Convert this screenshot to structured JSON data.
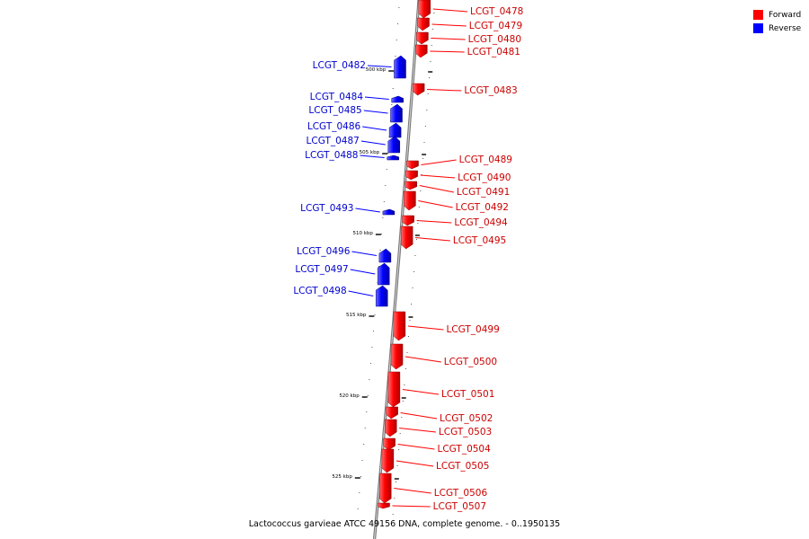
{
  "caption": "Lactococcus garvieae ATCC 49156 DNA, complete genome. - 0..1950135",
  "legend": [
    {
      "label": "Forward",
      "color": "#ff0000"
    },
    {
      "label": "Reverse",
      "color": "#0000ff"
    }
  ],
  "colors": {
    "forward": "#ff0000",
    "reverse": "#0000ff",
    "forward_label": "#cc0000",
    "reverse_label": "#0000cc"
  },
  "ticks": [
    {
      "kbp": 500,
      "label": "500 kbp"
    },
    {
      "kbp": 505,
      "label": "505 kbp"
    },
    {
      "kbp": 510,
      "label": "510 kbp"
    },
    {
      "kbp": 515,
      "label": "515 kbp"
    },
    {
      "kbp": 520,
      "label": "520 kbp"
    },
    {
      "kbp": 525,
      "label": "525 kbp"
    }
  ],
  "genes": [
    {
      "name": "LCGT_0478",
      "strand": "forward"
    },
    {
      "name": "LCGT_0479",
      "strand": "forward"
    },
    {
      "name": "LCGT_0480",
      "strand": "forward"
    },
    {
      "name": "LCGT_0481",
      "strand": "forward"
    },
    {
      "name": "LCGT_0482",
      "strand": "reverse"
    },
    {
      "name": "LCGT_0483",
      "strand": "forward"
    },
    {
      "name": "LCGT_0484",
      "strand": "reverse"
    },
    {
      "name": "LCGT_0485",
      "strand": "reverse"
    },
    {
      "name": "LCGT_0486",
      "strand": "reverse"
    },
    {
      "name": "LCGT_0487",
      "strand": "reverse"
    },
    {
      "name": "LCGT_0488",
      "strand": "reverse"
    },
    {
      "name": "LCGT_0489",
      "strand": "forward"
    },
    {
      "name": "LCGT_0490",
      "strand": "forward"
    },
    {
      "name": "LCGT_0491",
      "strand": "forward"
    },
    {
      "name": "LCGT_0492",
      "strand": "forward"
    },
    {
      "name": "LCGT_0493",
      "strand": "reverse"
    },
    {
      "name": "LCGT_0494",
      "strand": "forward"
    },
    {
      "name": "LCGT_0495",
      "strand": "forward"
    },
    {
      "name": "LCGT_0496",
      "strand": "reverse"
    },
    {
      "name": "LCGT_0497",
      "strand": "reverse"
    },
    {
      "name": "LCGT_0498",
      "strand": "reverse"
    },
    {
      "name": "LCGT_0499",
      "strand": "forward"
    },
    {
      "name": "LCGT_0500",
      "strand": "forward"
    },
    {
      "name": "LCGT_0501",
      "strand": "forward"
    },
    {
      "name": "LCGT_0502",
      "strand": "forward"
    },
    {
      "name": "LCGT_0503",
      "strand": "forward"
    },
    {
      "name": "LCGT_0504",
      "strand": "forward"
    },
    {
      "name": "LCGT_0505",
      "strand": "forward"
    },
    {
      "name": "LCGT_0506",
      "strand": "forward"
    },
    {
      "name": "LCGT_0507",
      "strand": "forward"
    }
  ]
}
